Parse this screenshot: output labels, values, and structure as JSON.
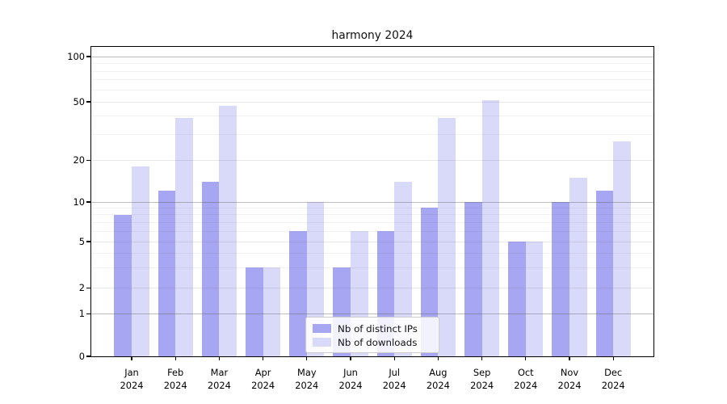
{
  "figure": {
    "title": "harmony 2024"
  },
  "chart_data": {
    "type": "bar",
    "title": "harmony 2024",
    "categories": [
      "Jan",
      "Feb",
      "Mar",
      "Apr",
      "May",
      "Jun",
      "Jul",
      "Aug",
      "Sep",
      "Oct",
      "Nov",
      "Dec"
    ],
    "year_label": "2024",
    "series": [
      {
        "name": "Nb of distinct IPs",
        "color": "#a6a6f3",
        "values": [
          8,
          12,
          14,
          3,
          6,
          3,
          6,
          9,
          10,
          5,
          10,
          12
        ]
      },
      {
        "name": "Nb of downloads",
        "color": "#d9d9fa",
        "values": [
          18,
          39,
          47,
          3,
          10,
          6,
          14,
          39,
          51,
          5,
          15,
          27
        ]
      }
    ],
    "yscale": "log-like",
    "ylim": [
      0,
      115
    ],
    "ytick_values": [
      0,
      1,
      2,
      5,
      10,
      20,
      50,
      100
    ],
    "ytick_labels": [
      "0",
      "1",
      "2",
      "5",
      "10",
      "20",
      "50",
      "100"
    ],
    "minor_gridline_values": [
      3,
      4,
      6,
      7,
      8,
      9,
      30,
      40,
      60,
      70,
      80,
      90
    ],
    "grid": true,
    "legend_position": "lower center"
  }
}
